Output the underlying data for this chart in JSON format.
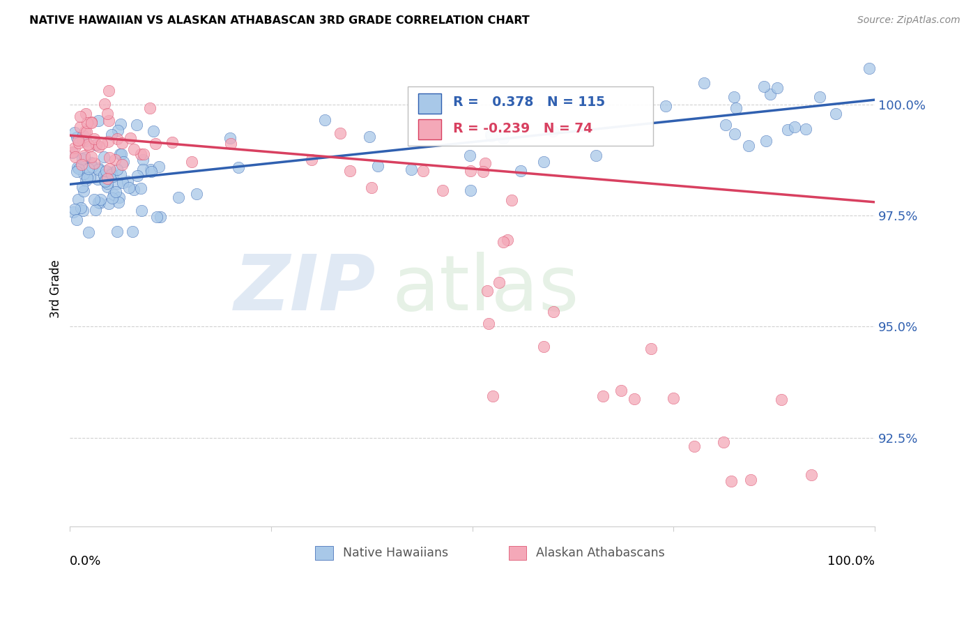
{
  "title": "NATIVE HAWAIIAN VS ALASKAN ATHABASCAN 3RD GRADE CORRELATION CHART",
  "source": "Source: ZipAtlas.com",
  "ylabel": "3rd Grade",
  "x_range": [
    0.0,
    100.0
  ],
  "y_range": [
    90.5,
    101.2
  ],
  "blue_r": 0.378,
  "blue_n": 115,
  "pink_r": -0.239,
  "pink_n": 74,
  "blue_color": "#A8C8E8",
  "pink_color": "#F4A8B8",
  "blue_line_color": "#3060B0",
  "pink_line_color": "#D84060",
  "ytick_vals": [
    92.5,
    95.0,
    97.5,
    100.0
  ],
  "ytick_labels": [
    "92.5%",
    "95.0%",
    "97.5%",
    "100.0%"
  ],
  "blue_line_x0": 0,
  "blue_line_y0": 98.2,
  "blue_line_x1": 100,
  "blue_line_y1": 100.1,
  "pink_line_x0": 0,
  "pink_line_y0": 99.3,
  "pink_line_x1": 100,
  "pink_line_y1": 97.8
}
